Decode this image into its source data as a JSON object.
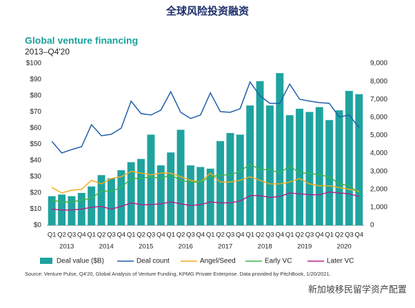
{
  "page_title": "全球风险投资融资",
  "watermark": "新加坡移民留学资产配置",
  "chart_data": {
    "type": "bar",
    "title": "Global venture financing",
    "subtitle": "2013–Q4'20",
    "categories": [
      "Q1",
      "Q2",
      "Q3",
      "Q4",
      "Q1",
      "Q2",
      "Q3",
      "Q4",
      "Q1",
      "Q2",
      "Q3",
      "Q4",
      "Q1",
      "Q2",
      "Q3",
      "Q4",
      "Q1",
      "Q2",
      "Q3",
      "Q4",
      "Q1",
      "Q2",
      "Q3",
      "Q4",
      "Q1",
      "Q2",
      "Q3",
      "Q4",
      "Q1",
      "Q2",
      "Q3",
      "Q4"
    ],
    "year_labels": [
      "2013",
      "2014",
      "2015",
      "2016",
      "2017",
      "2018",
      "2019",
      "2020"
    ],
    "ylim": [
      0,
      100
    ],
    "yticks": [
      {
        "value": 0,
        "label": "$0"
      },
      {
        "value": 10,
        "label": "$10"
      },
      {
        "value": 20,
        "label": "$20"
      },
      {
        "value": 30,
        "label": "$30"
      },
      {
        "value": 40,
        "label": "$40"
      },
      {
        "value": 50,
        "label": "$50"
      },
      {
        "value": 60,
        "label": "$60"
      },
      {
        "value": 70,
        "label": "$70"
      },
      {
        "value": 80,
        "label": "$80"
      },
      {
        "value": 90,
        "label": "$90"
      },
      {
        "value": 100,
        "label": "$100"
      }
    ],
    "y2lim": [
      0,
      9000
    ],
    "y2ticks": [
      0,
      {
        "value": 1000,
        "label": "1,000"
      },
      {
        "value": 2000,
        "label": "2,000"
      },
      {
        "value": 3000,
        "label": "3,000"
      },
      {
        "value": 4000,
        "label": "4,000"
      },
      {
        "value": 5000,
        "label": "5,000"
      },
      {
        "value": 6000,
        "label": "6,000"
      },
      {
        "value": 7000,
        "label": "7,000"
      },
      {
        "value": 8000,
        "label": "8,000"
      },
      {
        "value": 9000,
        "label": "9,000"
      }
    ],
    "series": [
      {
        "name": "Deal value ($B)",
        "type": "bar",
        "color": "#1fa39f",
        "values": [
          18,
          19,
          18,
          20,
          24,
          31,
          29,
          34,
          39,
          41,
          56,
          37,
          45,
          59,
          37,
          36,
          35,
          52,
          57,
          56,
          74,
          89,
          74,
          94,
          68,
          72,
          70,
          73,
          65,
          71,
          83,
          81
        ]
      },
      {
        "name": "Deal count",
        "type": "line",
        "axis": "y2",
        "color": "#1f5ea8",
        "values": [
          4670,
          4020,
          4210,
          4370,
          5590,
          4980,
          5060,
          5400,
          6900,
          6210,
          6130,
          6400,
          7430,
          6280,
          5940,
          6130,
          7360,
          6320,
          6280,
          6480,
          7970,
          7200,
          6780,
          6780,
          7850,
          7010,
          6900,
          6820,
          6780,
          6020,
          6130,
          5440
        ]
      },
      {
        "name": "Angel/Seed",
        "type": "line",
        "axis": "y2",
        "color": "#f0ac1c",
        "values": [
          2100,
          1800,
          1950,
          2000,
          2500,
          2300,
          2600,
          2700,
          3000,
          2900,
          2800,
          2900,
          2900,
          2700,
          2500,
          2400,
          2900,
          2400,
          2400,
          2500,
          2700,
          2500,
          2300,
          2300,
          2400,
          2600,
          2300,
          2200,
          2200,
          2100,
          2000,
          1900
        ]
      },
      {
        "name": "Early VC",
        "type": "line",
        "axis": "y2",
        "color": "#3db54a",
        "values": [
          1400,
          1300,
          1300,
          1400,
          1500,
          1900,
          1900,
          2100,
          2600,
          2600,
          2700,
          2600,
          2800,
          2500,
          2400,
          2400,
          2700,
          2800,
          2800,
          3000,
          3400,
          3100,
          3100,
          2900,
          3300,
          2900,
          2900,
          2800,
          2700,
          2300,
          2200,
          1800
        ]
      },
      {
        "name": "Later VC",
        "type": "line",
        "axis": "y2",
        "color": "#b0238c",
        "values": [
          900,
          850,
          850,
          900,
          1000,
          1050,
          900,
          1050,
          1250,
          1150,
          1150,
          1200,
          1300,
          1200,
          1100,
          1150,
          1300,
          1250,
          1250,
          1350,
          1650,
          1650,
          1550,
          1600,
          1800,
          1750,
          1700,
          1700,
          1850,
          1800,
          1750,
          1600
        ]
      }
    ],
    "source": "Source: Venture Pulse, Q4'20, Global Analysis of Venture Funding, KPMG Private Enterprise. Data provided by PitchBook, 1/20/2021."
  }
}
